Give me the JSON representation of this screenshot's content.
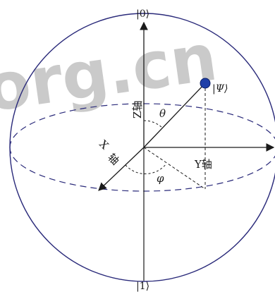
{
  "labels": {
    "ket_zero": "|0⟩",
    "ket_one": "|1⟩",
    "ket_psi": "|Ψ⟩",
    "z_axis": "Z轴",
    "x_axis_top": "X",
    "x_axis_bottom": "轴",
    "y_axis": "Y轴",
    "theta": "θ",
    "phi": "φ"
  },
  "watermark": {
    "text": "org.cn",
    "color": "#9a9a9a"
  },
  "colors": {
    "sphere_stroke": "#2a2a7a",
    "axis_stroke": "#1a1a1a",
    "state_point": "#1f3fa8"
  }
}
